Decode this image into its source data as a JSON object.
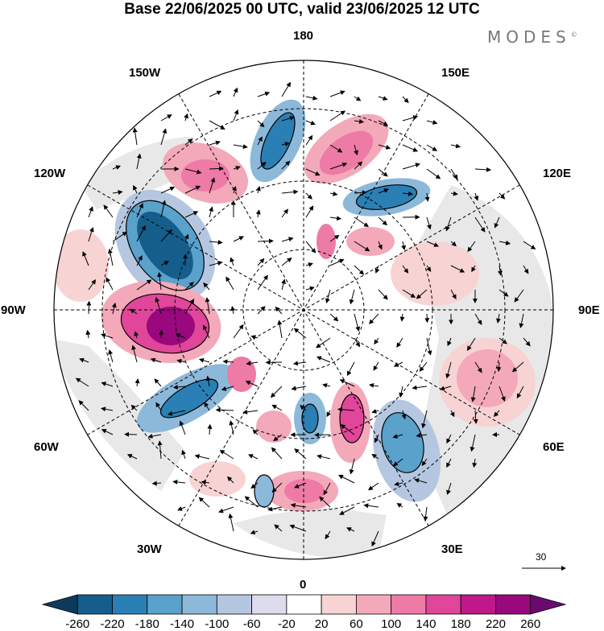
{
  "title": "Base 22/06/2025 00 UTC, valid 23/06/2025 12 UTC",
  "brand": "MODES",
  "brand_mark": "©",
  "longitude_labels": {
    "lon_180": "180",
    "lon_150w": "150W",
    "lon_150e": "150E",
    "lon_120w": "120W",
    "lon_120e": "120E",
    "lon_90w": "90W",
    "lon_90e": "90E",
    "lon_60w": "60W",
    "lon_60e": "60E",
    "lon_30w": "30W",
    "lon_30e": "30E",
    "lon_0": "0"
  },
  "vector_scale": "30",
  "colorbar": {
    "ticks": [
      "-260",
      "-220",
      "-180",
      "-140",
      "-100",
      "-60",
      "-20",
      "20",
      "60",
      "100",
      "140",
      "180",
      "220",
      "260"
    ],
    "colors": [
      "#0d3a5c",
      "#155e8c",
      "#2a7fb5",
      "#5aa1cb",
      "#8cb8d9",
      "#b5c7e0",
      "#dcdcec",
      "#ffffff",
      "#f8d3d3",
      "#f3a9b9",
      "#ee7aa6",
      "#e04699",
      "#c0188a",
      "#99087d",
      "#6a0a70"
    ]
  }
}
